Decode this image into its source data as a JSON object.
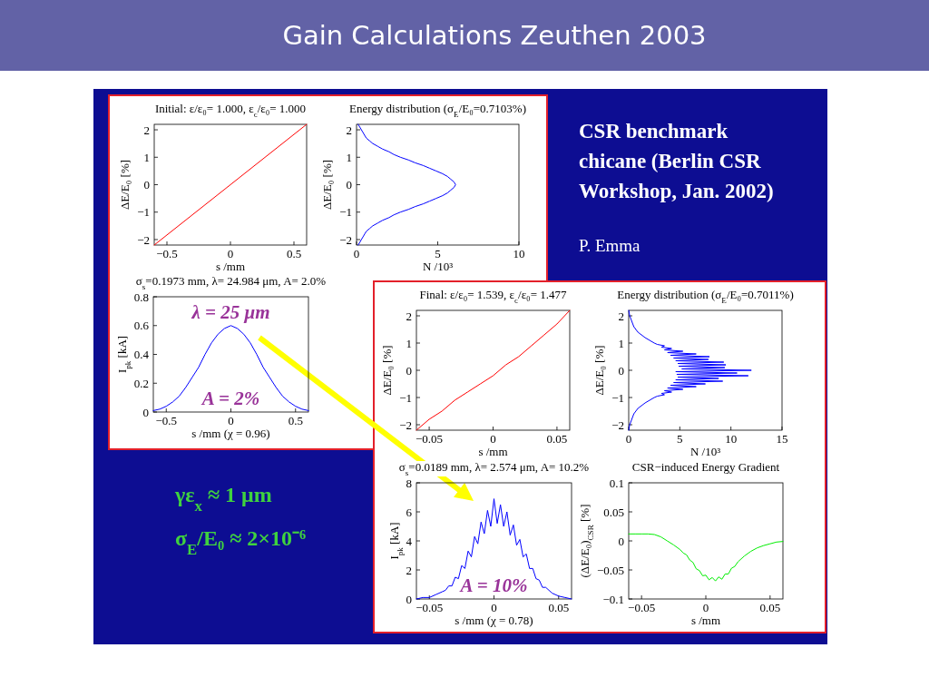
{
  "chart_data": [
    {
      "type": "other",
      "title": "Gain Calculations Zeuthen 2003",
      "annotations": [
        "CSR benchmark chicane (Berlin CSR Workshop, Jan. 2002)",
        "P. Emma",
        "γε$_{x}$ ≈ 1 μm",
        "σ$_{E}$/E₀ ≈ 2×10⁻⁶"
      ]
    },
    {
      "type": "line",
      "title": "Initial: ε/ε₀= 1.000, ε$_{c}$/ε₀= 1.000",
      "xlabel": "s /mm",
      "ylabel": "ΔE/E₀ [%]",
      "x": [
        -0.6,
        0.6
      ],
      "series": [
        {
          "color": "#ff0000",
          "values": [
            -2.2,
            2.2
          ]
        }
      ],
      "xlim": [
        -0.6,
        0.6
      ],
      "ylim": [
        -2.2,
        2.2
      ],
      "xticks": [
        -0.5,
        0,
        0.5
      ],
      "yticks": [
        -2,
        -1,
        0,
        1,
        2
      ]
    },
    {
      "type": "line",
      "title": "Energy distribution (σ$_{E}$/E₀=0.7103%)",
      "xlabel": "N /10³",
      "ylabel": "ΔE/E₀ [%]",
      "series": [
        {
          "color": "#0000ff",
          "x": [
            0.1,
            0.2,
            0.3,
            0.4,
            0.5,
            0.6,
            0.8,
            1.0,
            1.3,
            1.6,
            2.0,
            2.3,
            2.7,
            3.2,
            3.6,
            4.1,
            4.5,
            4.9,
            5.3,
            5.6,
            5.8,
            6.0,
            6.1,
            6.0,
            5.8,
            5.6,
            5.3,
            4.9,
            4.5,
            4.1,
            3.6,
            3.2,
            2.7,
            2.3,
            2.0,
            1.6,
            1.3,
            1.0,
            0.8,
            0.6,
            0.5,
            0.4,
            0.3,
            0.2,
            0.1
          ],
          "values": [
            -2.2,
            -2.1,
            -2.0,
            -1.9,
            -1.8,
            -1.7,
            -1.6,
            -1.5,
            -1.4,
            -1.3,
            -1.2,
            -1.1,
            -1.0,
            -0.9,
            -0.8,
            -0.7,
            -0.6,
            -0.5,
            -0.4,
            -0.3,
            -0.2,
            -0.1,
            0,
            0.1,
            0.2,
            0.3,
            0.4,
            0.5,
            0.6,
            0.7,
            0.8,
            0.9,
            1.0,
            1.1,
            1.2,
            1.3,
            1.4,
            1.5,
            1.6,
            1.7,
            1.8,
            1.9,
            2.0,
            2.1,
            2.2
          ]
        }
      ],
      "xlim": [
        0,
        10
      ],
      "ylim": [
        -2.2,
        2.2
      ],
      "xticks": [
        0,
        5,
        10
      ],
      "yticks": [
        -2,
        -1,
        0,
        1,
        2
      ]
    },
    {
      "type": "line",
      "title": "σ$_{s}$=0.1973 mm, λ= 24.984 μm, A= 2.0%",
      "xlabel": "s /mm (χ = 0.96)",
      "ylabel": "I$_{pk}$ [kA]",
      "annotations": [
        "λ = 25 μm",
        "A = 2%"
      ],
      "x": [
        -0.6,
        -0.55,
        -0.5,
        -0.45,
        -0.4,
        -0.35,
        -0.3,
        -0.25,
        -0.2,
        -0.15,
        -0.1,
        -0.05,
        0,
        0.05,
        0.1,
        0.15,
        0.2,
        0.25,
        0.3,
        0.35,
        0.4,
        0.45,
        0.5,
        0.55,
        0.6
      ],
      "series": [
        {
          "color": "#0000ff",
          "values": [
            0.01,
            0.02,
            0.04,
            0.07,
            0.11,
            0.17,
            0.24,
            0.31,
            0.4,
            0.48,
            0.54,
            0.58,
            0.6,
            0.58,
            0.54,
            0.48,
            0.4,
            0.31,
            0.24,
            0.17,
            0.11,
            0.07,
            0.04,
            0.02,
            0.01
          ]
        }
      ],
      "xlim": [
        -0.6,
        0.6
      ],
      "ylim": [
        0,
        0.8
      ],
      "xticks": [
        -0.5,
        0,
        0.5
      ],
      "yticks": [
        0,
        0.2,
        0.4,
        0.6,
        0.8
      ]
    },
    {
      "type": "line",
      "title": "Final: ε/ε₀= 1.539, ε$_{c}$/ε₀= 1.477",
      "xlabel": "s /mm",
      "ylabel": "ΔE/E₀ [%]",
      "x": [
        -0.06,
        -0.05,
        -0.04,
        -0.03,
        -0.02,
        -0.01,
        0,
        0.01,
        0.02,
        0.03,
        0.04,
        0.05,
        0.06
      ],
      "series": [
        {
          "color": "#ff0000",
          "values": [
            -2.2,
            -1.8,
            -1.5,
            -1.1,
            -0.8,
            -0.5,
            -0.2,
            0.2,
            0.5,
            0.9,
            1.3,
            1.7,
            2.2
          ]
        }
      ],
      "xlim": [
        -0.06,
        0.06
      ],
      "ylim": [
        -2.2,
        2.2
      ],
      "xticks": [
        -0.05,
        0,
        0.05
      ],
      "yticks": [
        -2,
        -1,
        0,
        1,
        2
      ]
    },
    {
      "type": "line",
      "title": "Energy distribution (σ$_{E}$/E₀=0.7011%)",
      "xlabel": "N /10³",
      "ylabel": "ΔE/E₀ [%]",
      "series": [
        {
          "color": "#0000ff",
          "x": [
            0.0,
            0.1,
            0.3,
            0.5,
            0.9,
            1.6,
            2.5,
            2.8,
            3.5,
            3.2,
            4.2,
            3.5,
            5.3,
            3.8,
            6.6,
            4.1,
            7.5,
            4.4,
            9.2,
            4.6,
            8.8,
            4.8,
            11.7,
            4.7,
            10.6,
            4.6,
            12.0,
            5.2,
            9.4,
            4.9,
            9.5,
            4.8,
            9.3,
            4.6,
            7.8,
            4.4,
            7.9,
            4.1,
            6.6,
            3.8,
            5.3,
            3.5,
            4.2,
            3.2,
            3.5,
            2.8,
            2.5,
            1.6,
            0.9,
            0.5,
            0.3,
            0.1,
            0.0
          ],
          "values": [
            -2.2,
            -2,
            -1.8,
            -1.6,
            -1.4,
            -1.2,
            -1,
            -0.95,
            -0.9,
            -0.85,
            -0.8,
            -0.75,
            -0.7,
            -0.65,
            -0.6,
            -0.55,
            -0.5,
            -0.45,
            -0.4,
            -0.35,
            -0.3,
            -0.25,
            -0.2,
            -0.15,
            -0.1,
            -0.05,
            0,
            0.05,
            0.1,
            0.15,
            0.2,
            0.25,
            0.3,
            0.35,
            0.4,
            0.45,
            0.5,
            0.55,
            0.6,
            0.65,
            0.7,
            0.75,
            0.8,
            0.85,
            0.9,
            0.95,
            1,
            1.2,
            1.4,
            1.6,
            1.8,
            2,
            2.2
          ]
        }
      ],
      "xlim": [
        0,
        15
      ],
      "ylim": [
        -2.2,
        2.2
      ],
      "xticks": [
        0,
        5,
        10,
        15
      ],
      "yticks": [
        -2,
        -1,
        0,
        1,
        2
      ]
    },
    {
      "type": "line",
      "title": "σ$_{s}$=0.0189 mm, λ= 2.574 μm, A= 10.2%",
      "xlabel": "s /mm (χ = 0.78)",
      "ylabel": "I$_{pk}$ [kA]",
      "annotations": [
        "A = 10%"
      ],
      "x": [
        -0.06,
        -0.055,
        -0.05,
        -0.045,
        -0.04,
        -0.0375,
        -0.035,
        -0.0325,
        -0.03,
        -0.0275,
        -0.025,
        -0.0225,
        -0.02,
        -0.0175,
        -0.015,
        -0.0125,
        -0.01,
        -0.0075,
        -0.005,
        -0.0025,
        0,
        0.0025,
        0.005,
        0.0075,
        0.01,
        0.0125,
        0.015,
        0.0175,
        0.02,
        0.0225,
        0.025,
        0.0275,
        0.03,
        0.0325,
        0.035,
        0.0375,
        0.04,
        0.045,
        0.05,
        0.055,
        0.06
      ],
      "series": [
        {
          "color": "#0000ff",
          "values": [
            0.0,
            0.1,
            0.1,
            0.3,
            0.5,
            0.6,
            0.9,
            0.9,
            1.5,
            1.4,
            2.3,
            2.1,
            3.3,
            2.9,
            4.3,
            3.8,
            5.3,
            4.5,
            6.1,
            5.0,
            6.9,
            5.2,
            6.5,
            5.0,
            6.0,
            4.4,
            5.1,
            3.7,
            4.1,
            2.9,
            3.1,
            2.1,
            2.1,
            1.4,
            1.3,
            0.8,
            0.8,
            0.4,
            0.2,
            0.1,
            0.0
          ]
        }
      ],
      "xlim": [
        -0.06,
        0.06
      ],
      "ylim": [
        0,
        8
      ],
      "xticks": [
        -0.05,
        0,
        0.05
      ],
      "yticks": [
        0,
        2,
        4,
        6,
        8
      ]
    },
    {
      "type": "line",
      "title": "CSR−induced Energy Gradient",
      "xlabel": "s /mm",
      "ylabel": "(ΔE/E₀)$_{CSR}$ [%]",
      "x": [
        -0.06,
        -0.055,
        -0.05,
        -0.045,
        -0.04,
        -0.035,
        -0.03,
        -0.025,
        -0.02,
        -0.0175,
        -0.015,
        -0.0125,
        -0.01,
        -0.0075,
        -0.005,
        -0.0025,
        0,
        0.0025,
        0.005,
        0.0075,
        0.01,
        0.0125,
        0.015,
        0.0175,
        0.02,
        0.0225,
        0.025,
        0.03,
        0.035,
        0.04,
        0.045,
        0.05,
        0.055,
        0.06
      ],
      "series": [
        {
          "color": "#00ee00",
          "values": [
            0.012,
            0.012,
            0.012,
            0.012,
            0.011,
            0.007,
            0.0,
            -0.007,
            -0.015,
            -0.021,
            -0.024,
            -0.033,
            -0.037,
            -0.048,
            -0.051,
            -0.06,
            -0.059,
            -0.067,
            -0.063,
            -0.069,
            -0.062,
            -0.066,
            -0.057,
            -0.057,
            -0.047,
            -0.044,
            -0.036,
            -0.026,
            -0.018,
            -0.012,
            -0.008,
            -0.005,
            -0.002,
            -0.001
          ]
        }
      ],
      "xlim": [
        -0.06,
        0.06
      ],
      "ylim": [
        -0.1,
        0.1
      ],
      "xticks": [
        -0.05,
        0,
        0.05
      ],
      "yticks": [
        -0.1,
        -0.05,
        0,
        0.05,
        0.1
      ]
    }
  ]
}
